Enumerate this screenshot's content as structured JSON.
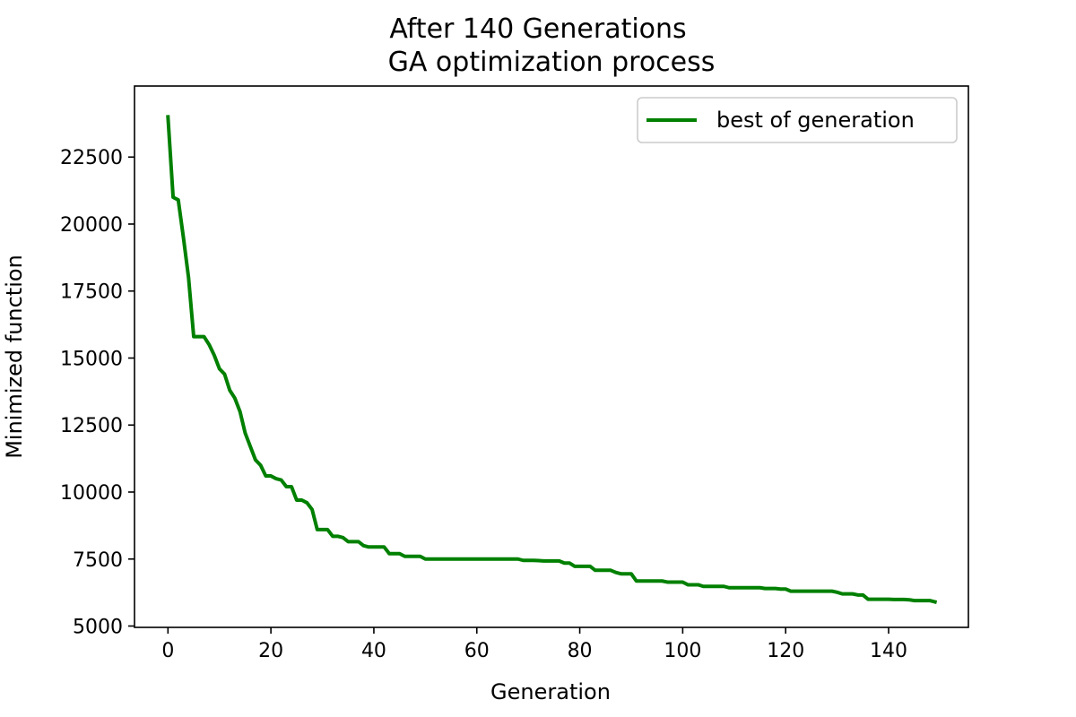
{
  "chart_data": {
    "type": "line",
    "title": "After 140 Generations",
    "subtitle": "GA optimization process",
    "xlabel": "Generation",
    "ylabel": "Minimized function",
    "xlim": [
      -6.5,
      155.5
    ],
    "ylim": [
      4950,
      25150
    ],
    "xticks": [
      0,
      20,
      40,
      60,
      80,
      100,
      120,
      140
    ],
    "yticks": [
      5000,
      7500,
      10000,
      12500,
      15000,
      17500,
      20000,
      22500
    ],
    "grid": false,
    "legend_position": "top-right",
    "series": [
      {
        "name": "best of generation",
        "color": "#008000",
        "x": [
          0,
          1,
          2,
          3,
          4,
          5,
          6,
          7,
          8,
          9,
          10,
          11,
          12,
          13,
          14,
          15,
          16,
          17,
          18,
          19,
          20,
          21,
          22,
          23,
          24,
          25,
          26,
          27,
          28,
          29,
          30,
          31,
          32,
          33,
          34,
          35,
          36,
          37,
          38,
          39,
          40,
          41,
          42,
          43,
          44,
          45,
          46,
          47,
          48,
          49,
          50,
          51,
          52,
          53,
          54,
          55,
          56,
          57,
          58,
          59,
          60,
          61,
          62,
          63,
          64,
          65,
          66,
          67,
          68,
          69,
          70,
          71,
          72,
          73,
          74,
          75,
          76,
          77,
          78,
          79,
          80,
          81,
          82,
          83,
          84,
          85,
          86,
          87,
          88,
          89,
          90,
          91,
          92,
          93,
          94,
          95,
          96,
          97,
          98,
          99,
          100,
          101,
          102,
          103,
          104,
          105,
          106,
          107,
          108,
          109,
          110,
          111,
          112,
          113,
          114,
          115,
          116,
          117,
          118,
          119,
          120,
          121,
          122,
          123,
          124,
          125,
          126,
          127,
          128,
          129,
          130,
          131,
          132,
          133,
          134,
          135,
          136,
          137,
          138,
          139,
          140,
          141,
          142,
          143,
          144,
          145,
          146,
          147,
          148,
          149
        ],
        "y": [
          24000,
          21000,
          20900,
          19500,
          18000,
          15800,
          15800,
          15800,
          15500,
          15100,
          14600,
          14400,
          13800,
          13500,
          13000,
          12200,
          11700,
          11200,
          11000,
          10600,
          10600,
          10500,
          10450,
          10200,
          10200,
          9700,
          9700,
          9600,
          9350,
          8600,
          8600,
          8600,
          8350,
          8350,
          8300,
          8150,
          8150,
          8150,
          8000,
          7950,
          7950,
          7950,
          7950,
          7700,
          7700,
          7700,
          7600,
          7600,
          7600,
          7600,
          7500,
          7500,
          7500,
          7500,
          7500,
          7500,
          7500,
          7500,
          7500,
          7500,
          7500,
          7500,
          7500,
          7500,
          7500,
          7500,
          7500,
          7500,
          7500,
          7450,
          7450,
          7450,
          7440,
          7430,
          7430,
          7430,
          7430,
          7350,
          7350,
          7230,
          7230,
          7230,
          7230,
          7080,
          7080,
          7080,
          7080,
          7000,
          6950,
          6950,
          6950,
          6680,
          6680,
          6680,
          6680,
          6680,
          6680,
          6640,
          6640,
          6640,
          6640,
          6540,
          6540,
          6540,
          6480,
          6480,
          6480,
          6480,
          6480,
          6430,
          6430,
          6430,
          6430,
          6430,
          6430,
          6430,
          6400,
          6400,
          6400,
          6380,
          6380,
          6300,
          6300,
          6300,
          6300,
          6300,
          6300,
          6300,
          6300,
          6300,
          6260,
          6200,
          6200,
          6200,
          6160,
          6160,
          6000,
          6000,
          6000,
          6000,
          6000,
          5990,
          5990,
          5990,
          5980,
          5950,
          5950,
          5950,
          5950,
          5900
        ]
      }
    ]
  }
}
